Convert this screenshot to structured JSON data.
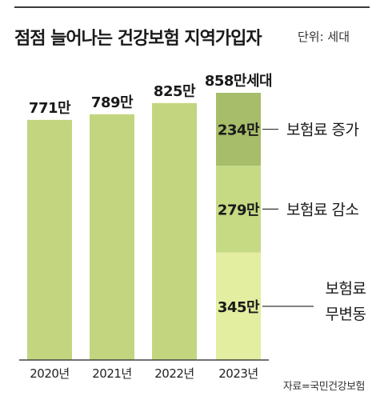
{
  "title": "점점 늘어나는 건강보험 지역가입자",
  "unit_label": "단위: 세대",
  "source": "자료=국민건강보험",
  "chart_data": {
    "type": "bar",
    "categories": [
      "2020년",
      "2021년",
      "2022년",
      "2023년"
    ],
    "values": [
      771,
      789,
      825,
      858
    ],
    "value_labels": [
      "771만",
      "789만",
      "825만",
      "858만세대"
    ],
    "stack_2023": [
      {
        "name": "보험료 무변동",
        "label_lines": [
          "보험료",
          "무변동"
        ],
        "value": 345,
        "value_label": "345만",
        "color": "#e3eea1"
      },
      {
        "name": "보험료 감소",
        "label_lines": [
          "보험료 감소"
        ],
        "value": 279,
        "value_label": "279만",
        "color": "#c6da84"
      },
      {
        "name": "보험료 증가",
        "label_lines": [
          "보험료 증가"
        ],
        "value": 234,
        "value_label": "234만",
        "color": "#a7bd6a"
      }
    ],
    "bar_color": "#c3d67f",
    "ylim": [
      0,
      858
    ],
    "grid": false
  }
}
